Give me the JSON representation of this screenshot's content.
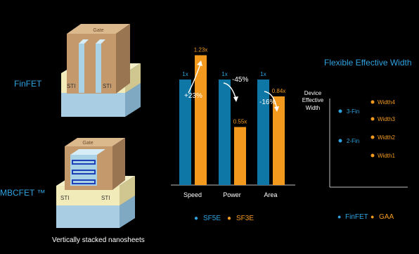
{
  "devices": {
    "finfet_label": "FinFET",
    "mbcfet_label": "MBCFET ™",
    "gate_label": "Gate",
    "sti_label": "STI",
    "caption": "Vertically stacked nanosheets"
  },
  "colors": {
    "blue": "#0e77a6",
    "orange": "#f39a1e",
    "blue_text": "#2fa3e0",
    "axis": "#bfbfbf"
  },
  "chart_data": {
    "type": "bar",
    "categories": [
      "Speed",
      "Power",
      "Area"
    ],
    "series": [
      {
        "name": "SF5E",
        "values": [
          1,
          1,
          1
        ],
        "value_labels": [
          "1x",
          "1x",
          "1x"
        ]
      },
      {
        "name": "SF3E",
        "values": [
          1.23,
          0.55,
          0.84
        ],
        "value_labels": [
          "1.23x",
          "0.55x",
          "0.84x"
        ]
      }
    ],
    "annotations": [
      "+23%",
      "-45%",
      "-16%"
    ],
    "ylim": [
      0,
      1.3
    ],
    "grid": false,
    "legend": "bottom"
  },
  "flex_width": {
    "title": "Flexible Effective Width",
    "ylabel": "Device Effective Width",
    "finfet_points": [
      "3-Fin",
      "2-Fin"
    ],
    "gaa_points": [
      "Width4",
      "Width3",
      "Width2",
      "Width1"
    ],
    "legend": [
      "FinFET",
      "GAA"
    ]
  }
}
